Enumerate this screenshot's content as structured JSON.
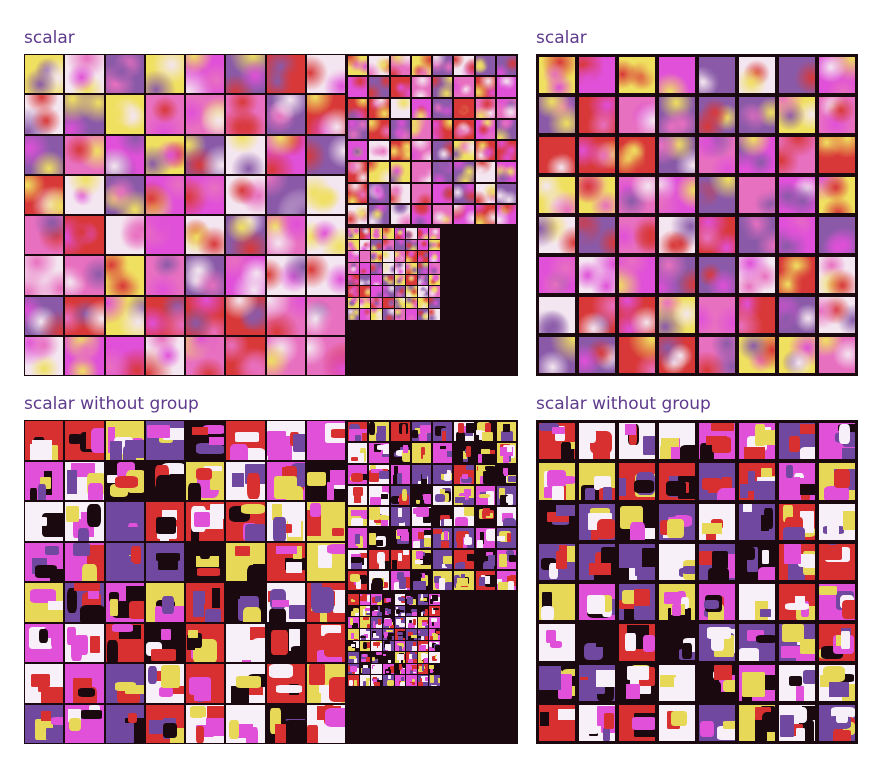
{
  "panels": [
    {
      "id": "scalar-multiscale",
      "title": "scalar",
      "style": "smooth",
      "seed": 11
    },
    {
      "id": "scalar-single",
      "title": "scalar",
      "style": "smooth",
      "seed": 23
    },
    {
      "id": "nogroup-multiscale",
      "title": "scalar without group",
      "style": "blocky",
      "seed": 37
    },
    {
      "id": "nogroup-single",
      "title": "scalar without group",
      "style": "blocky",
      "seed": 51
    }
  ],
  "colors": {
    "background": "#1a0a10",
    "title": "#5e3a8c",
    "palette_smooth": [
      "#f0e060",
      "#e050d8",
      "#d83838",
      "#f4e6f0",
      "#8a5aa8",
      "#e870c0"
    ],
    "palette_blocky": [
      "#d83030",
      "#e8d858",
      "#e050d8",
      "#1a0a10",
      "#7048a0",
      "#f8f0f8"
    ]
  }
}
